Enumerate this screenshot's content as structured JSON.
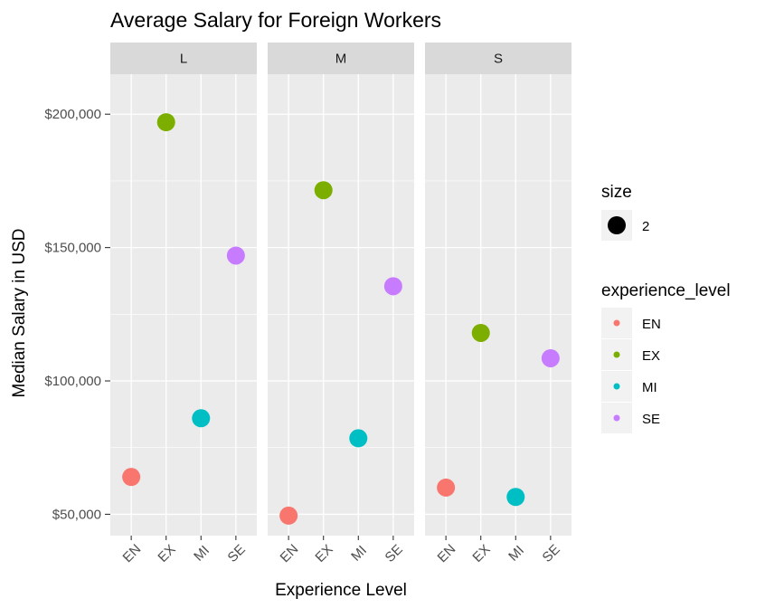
{
  "chart_data": {
    "type": "scatter",
    "title": "Average Salary for Foreign Workers",
    "xlabel": "Experience Level",
    "ylabel": "Median Salary in USD",
    "categories": [
      "EN",
      "EX",
      "MI",
      "SE"
    ],
    "ylim": [
      42000,
      215000
    ],
    "y_ticks": [
      50000,
      100000,
      150000,
      200000
    ],
    "y_tick_labels": [
      "$50,000",
      "$100,000",
      "$150,000",
      "$200,000"
    ],
    "grid": true,
    "facets": [
      {
        "label": "L",
        "values": [
          64000,
          197000,
          86000,
          147000
        ]
      },
      {
        "label": "M",
        "values": [
          49500,
          171500,
          78500,
          135500
        ]
      },
      {
        "label": "S",
        "values": [
          60000,
          118000,
          56500,
          108500
        ]
      }
    ],
    "colors": {
      "EN": "#F8766D",
      "EX": "#7CAE00",
      "MI": "#00BFC4",
      "SE": "#C77CFF"
    },
    "legend": {
      "placement": "right",
      "size_title": "size",
      "size_label": "2",
      "color_title": "experience_level",
      "color_labels": [
        "EN",
        "EX",
        "MI",
        "SE"
      ]
    }
  }
}
